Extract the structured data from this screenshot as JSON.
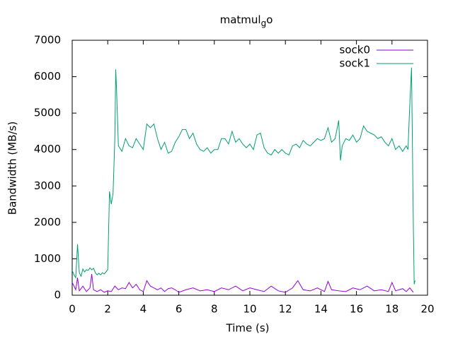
{
  "chart_data": {
    "type": "line",
    "title": {
      "text": "matmul",
      "subscript": "g",
      "suffix": "o"
    },
    "x_label": "Time (s)",
    "y_label": "Bandwidth (MB/s)",
    "xlim": [
      0,
      20
    ],
    "xticks": [
      0,
      2,
      4,
      6,
      8,
      10,
      12,
      14,
      16,
      18,
      20
    ],
    "ylim": [
      0,
      7000
    ],
    "yticks": [
      0,
      1000,
      2000,
      3000,
      4000,
      5000,
      6000,
      7000
    ],
    "legend": "top-right",
    "series": [
      {
        "name": "sock0",
        "color": "#9400d3",
        "x": [
          0.0,
          0.2,
          0.3,
          0.4,
          0.6,
          0.8,
          1.0,
          1.1,
          1.2,
          1.4,
          1.6,
          1.8,
          2.0,
          2.2,
          2.4,
          2.6,
          2.8,
          3.0,
          3.2,
          3.4,
          3.6,
          3.8,
          4.0,
          4.2,
          4.4,
          4.6,
          4.8,
          5.0,
          5.2,
          5.4,
          5.6,
          5.8,
          6.0,
          6.4,
          6.8,
          7.2,
          7.6,
          8.0,
          8.4,
          8.8,
          9.2,
          9.6,
          10.0,
          10.4,
          10.8,
          11.2,
          11.6,
          12.0,
          12.4,
          12.7,
          13.0,
          13.4,
          13.8,
          14.2,
          14.4,
          14.6,
          15.0,
          15.4,
          15.8,
          16.2,
          16.6,
          17.0,
          17.4,
          17.8,
          18.0,
          18.2,
          18.6,
          18.8,
          19.0,
          19.2
        ],
        "values": [
          350,
          150,
          480,
          120,
          250,
          100,
          200,
          580,
          150,
          100,
          150,
          80,
          120,
          100,
          250,
          150,
          200,
          180,
          350,
          200,
          300,
          150,
          100,
          400,
          250,
          200,
          150,
          200,
          100,
          180,
          200,
          150,
          80,
          150,
          200,
          120,
          150,
          100,
          200,
          150,
          250,
          120,
          200,
          150,
          100,
          250,
          120,
          80,
          200,
          400,
          150,
          120,
          200,
          100,
          380,
          150,
          120,
          100,
          200,
          150,
          250,
          120,
          150,
          100,
          350,
          120,
          180,
          100,
          200,
          80
        ]
      },
      {
        "name": "sock1",
        "color": "#009e73",
        "x": [
          0.0,
          0.1,
          0.2,
          0.3,
          0.4,
          0.5,
          0.6,
          0.7,
          0.8,
          0.9,
          1.0,
          1.1,
          1.2,
          1.3,
          1.4,
          1.5,
          1.6,
          1.7,
          1.8,
          1.9,
          2.0,
          2.1,
          2.2,
          2.3,
          2.4,
          2.45,
          2.5,
          2.6,
          2.8,
          3.0,
          3.2,
          3.4,
          3.6,
          3.8,
          4.0,
          4.2,
          4.4,
          4.6,
          4.8,
          5.0,
          5.2,
          5.4,
          5.6,
          5.8,
          6.0,
          6.2,
          6.4,
          6.6,
          6.8,
          7.0,
          7.2,
          7.4,
          7.6,
          7.8,
          8.0,
          8.2,
          8.4,
          8.6,
          8.8,
          9.0,
          9.2,
          9.4,
          9.6,
          9.8,
          10.0,
          10.2,
          10.4,
          10.6,
          10.8,
          11.0,
          11.2,
          11.4,
          11.6,
          11.8,
          12.0,
          12.2,
          12.4,
          12.6,
          12.8,
          13.0,
          13.2,
          13.4,
          13.6,
          13.8,
          14.0,
          14.2,
          14.4,
          14.6,
          14.8,
          15.0,
          15.1,
          15.2,
          15.4,
          15.6,
          15.8,
          16.0,
          16.2,
          16.4,
          16.6,
          16.8,
          17.0,
          17.2,
          17.4,
          17.6,
          17.8,
          18.0,
          18.2,
          18.4,
          18.6,
          18.8,
          18.9,
          19.0,
          19.1,
          19.2,
          19.25,
          19.3
        ],
        "values": [
          680,
          560,
          480,
          1400,
          620,
          520,
          720,
          640,
          700,
          680,
          750,
          700,
          740,
          620,
          560,
          600,
          560,
          620,
          580,
          640,
          700,
          2850,
          2500,
          2800,
          4300,
          6200,
          5600,
          4100,
          3950,
          4300,
          4100,
          4050,
          4300,
          4150,
          4000,
          4700,
          4600,
          4700,
          4300,
          4000,
          4200,
          3900,
          3950,
          4200,
          4350,
          4550,
          4550,
          4300,
          4450,
          4150,
          4000,
          3950,
          4050,
          3900,
          4000,
          4000,
          4300,
          4300,
          4150,
          4500,
          4200,
          4300,
          4150,
          4050,
          4150,
          4000,
          4400,
          4450,
          4050,
          3900,
          3850,
          4000,
          3900,
          4000,
          3900,
          3850,
          4100,
          4150,
          4050,
          4250,
          4150,
          4100,
          4200,
          4300,
          4250,
          4300,
          4600,
          4200,
          4300,
          4800,
          3700,
          4100,
          4300,
          4250,
          4400,
          4200,
          4300,
          4650,
          4500,
          4450,
          4400,
          4300,
          4350,
          4200,
          4100,
          4300,
          4000,
          4100,
          3950,
          4100,
          4000,
          5200,
          6250,
          2000,
          300,
          400
        ]
      }
    ]
  }
}
